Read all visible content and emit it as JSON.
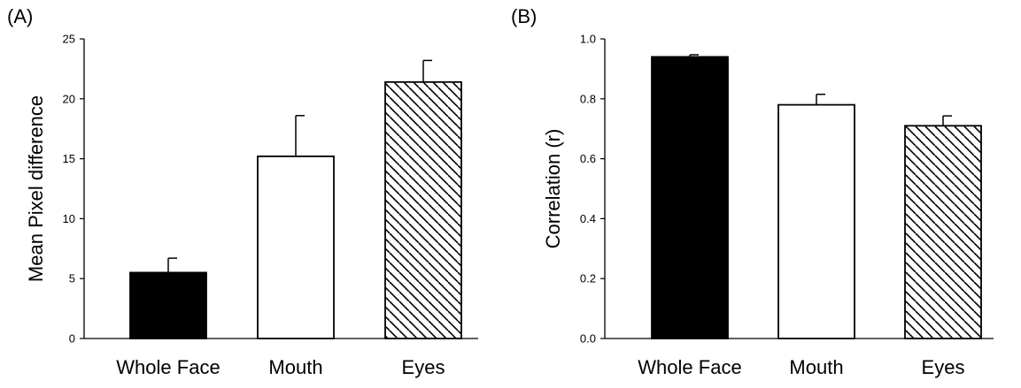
{
  "chart_data": [
    {
      "type": "bar",
      "panel_label": "(A)",
      "categories": [
        "Whole Face",
        "Mouth",
        "Eyes"
      ],
      "values": [
        5.5,
        15.2,
        21.4
      ],
      "errors": [
        1.2,
        3.4,
        1.8
      ],
      "fills": [
        "solid-black",
        "white",
        "hatched"
      ],
      "ylabel": "Mean Pixel  difference",
      "ylim": [
        0,
        25
      ],
      "yticks": [
        "0",
        "5",
        "10",
        "15",
        "20",
        "25"
      ],
      "ytick_values": [
        0,
        5,
        10,
        15,
        20,
        25
      ],
      "grid": false
    },
    {
      "type": "bar",
      "panel_label": "(B)",
      "categories": [
        "Whole Face",
        "Mouth",
        "Eyes"
      ],
      "values": [
        0.94,
        0.78,
        0.71
      ],
      "errors": [
        0.007,
        0.035,
        0.033
      ],
      "fills": [
        "solid-black",
        "white",
        "hatched"
      ],
      "ylabel": "Correlation (r)",
      "ylim": [
        0,
        1.0
      ],
      "yticks": [
        "0.0",
        "0.2",
        "0.4",
        "0.6",
        "0.8",
        "1.0"
      ],
      "ytick_values": [
        0,
        0.2,
        0.4,
        0.6,
        0.8,
        1.0
      ],
      "grid": false
    }
  ]
}
